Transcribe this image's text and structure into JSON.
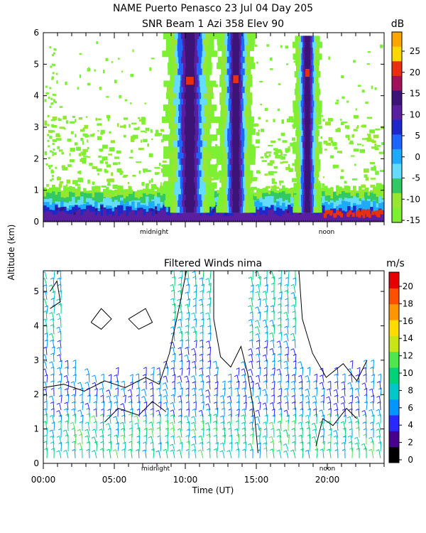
{
  "chart_data": [
    {
      "type": "heatmap",
      "title": "NAME Puerto Penasco  23 Jul 04 Day 205",
      "subtitle": "SNR Beam 1 Azi 358 Elev 90",
      "ylabel": "Altitude (km)",
      "xlabel": "",
      "ylim": [
        0,
        6
      ],
      "yticks": [
        "0",
        "1",
        "2",
        "3",
        "4",
        "5",
        "6"
      ],
      "x_markers": [
        "midnight",
        "noon"
      ],
      "colorbar": {
        "unit": "dB",
        "ticks": [
          "25",
          "20",
          "15",
          "10",
          "5",
          "0",
          "-5",
          "-10",
          "-15"
        ],
        "colors": [
          "#ffa500",
          "#ffd700",
          "#e83010",
          "#a0135a",
          "#3c1478",
          "#5a1ea0",
          "#1e28c8",
          "#1e64ff",
          "#1eaaff",
          "#64dcff",
          "#32c864",
          "#96e632",
          "#7cf032"
        ]
      },
      "grid": false,
      "legend": "right"
    },
    {
      "type": "scatter",
      "title": "Filtered Winds nima",
      "xlabel": "Time (UT)",
      "ylabel": "Altitude (km)",
      "ylim": [
        0,
        5.6
      ],
      "yticks": [
        "0",
        "1",
        "2",
        "3",
        "4",
        "5"
      ],
      "x": [
        "00:00",
        "05:00",
        "10:00",
        "15:00",
        "20:00"
      ],
      "x_markers": [
        "midnight",
        "noon"
      ],
      "colorbar": {
        "unit": "m/s",
        "ticks": [
          "20",
          "18",
          "16",
          "14",
          "12",
          "10",
          "8",
          "6",
          "4",
          "2",
          "0"
        ],
        "colors": [
          "#000000",
          "#46008c",
          "#2828ff",
          "#0096ff",
          "#00c8c8",
          "#00d278",
          "#50e650",
          "#c8e614",
          "#ffdc00",
          "#ff9600",
          "#ff5000",
          "#e60000"
        ]
      },
      "grid": false,
      "legend": "right"
    }
  ]
}
